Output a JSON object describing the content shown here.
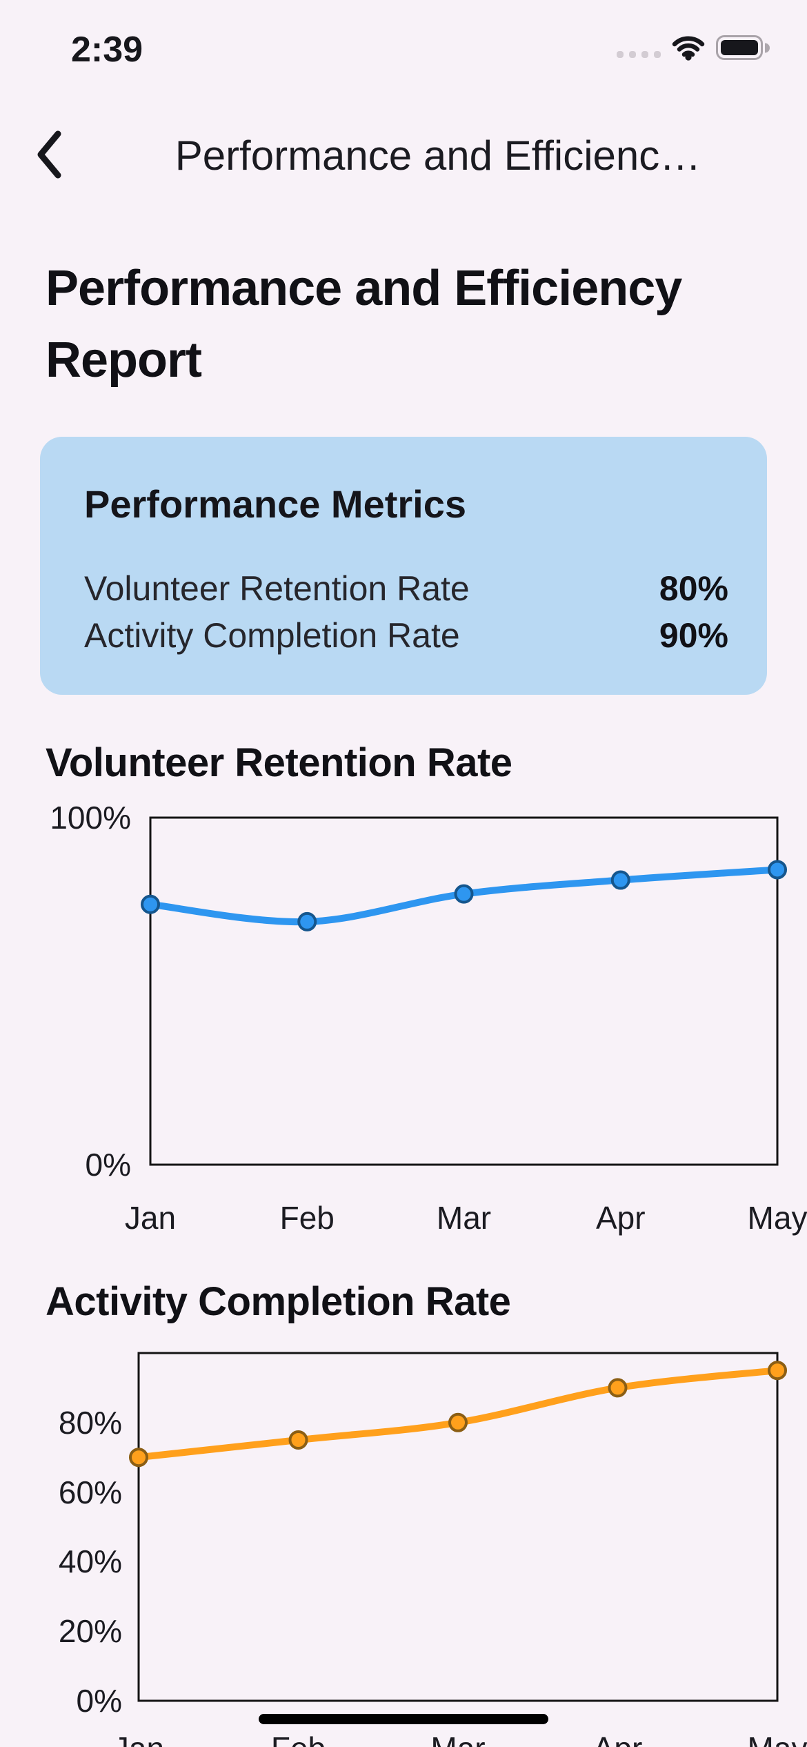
{
  "status_bar": {
    "time": "2:39",
    "cellular_icon": "cellular-signal-dots-icon",
    "wifi_icon": "wifi-icon",
    "battery_icon": "battery-full-icon"
  },
  "nav": {
    "back_icon": "chevron-left-icon",
    "title": "Performance and Efficienc…"
  },
  "page": {
    "title": "Performance and Efficiency Report",
    "background_color": "#f8f2f8",
    "text_color": "#17171c"
  },
  "metrics_card": {
    "title": "Performance Metrics",
    "background_color": "#b9d9f3",
    "rows": [
      {
        "label": "Volunteer Retention Rate",
        "value": "80%"
      },
      {
        "label": "Activity Completion Rate",
        "value": "90%"
      }
    ]
  },
  "chart_data": [
    {
      "type": "line",
      "title": "Volunteer Retention Rate",
      "x": [
        "Jan",
        "Feb",
        "Mar",
        "Apr",
        "May"
      ],
      "values": [
        75,
        70,
        78,
        82,
        85
      ],
      "unit": "%",
      "ylim": [
        0,
        100
      ],
      "y_ticks": [
        100,
        0
      ],
      "grid": false,
      "legend": "none",
      "line_color": "#2e96f0",
      "point_fill": "#2e96f0",
      "point_stroke": "#15568d",
      "axis_color": "#141414"
    },
    {
      "type": "line",
      "title": "Activity Completion Rate",
      "x": [
        "Jan",
        "Feb",
        "Mar",
        "Apr",
        "May"
      ],
      "values": [
        70,
        75,
        80,
        90,
        95
      ],
      "unit": "%",
      "ylim": [
        0,
        100
      ],
      "y_ticks": [
        80,
        60,
        40,
        20,
        0
      ],
      "grid": false,
      "legend": "none",
      "line_color": "#ffa01c",
      "point_fill": "#ffa01c",
      "point_stroke": "#8b5e14",
      "axis_color": "#141414"
    }
  ]
}
